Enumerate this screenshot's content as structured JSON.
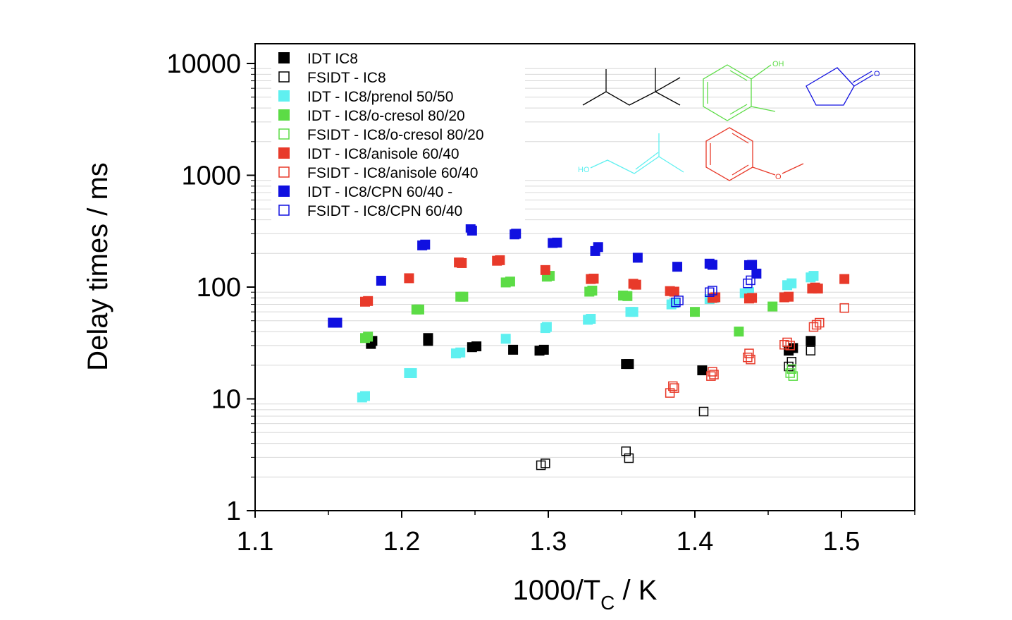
{
  "chart_data": {
    "type": "scatter",
    "xlabel_main": "1000/T",
    "xlabel_sub": "C",
    "xlabel_unit": " / K",
    "ylabel": "Delay times / ms",
    "xlim": [
      1.1,
      1.55
    ],
    "ylim": [
      1,
      20000
    ],
    "yscale": "log",
    "x_ticks": [
      "1.1",
      "1.2",
      "1.3",
      "1.4",
      "1.5"
    ],
    "y_ticks": [
      "1",
      "10",
      "100",
      "1000",
      "10000"
    ],
    "grid": "horizontal minor lines",
    "legend_position": "top-left",
    "series": [
      {
        "name": "IDT IC8",
        "color": "#000000",
        "filled": true,
        "points": [
          [
            1.179,
            31
          ],
          [
            1.18,
            33
          ],
          [
            1.218,
            33
          ],
          [
            1.218,
            35
          ],
          [
            1.248,
            29
          ],
          [
            1.251,
            29.5
          ],
          [
            1.276,
            27.5
          ],
          [
            1.294,
            27
          ],
          [
            1.297,
            27.5
          ],
          [
            1.353,
            20.5
          ],
          [
            1.355,
            20.5
          ],
          [
            1.405,
            18
          ],
          [
            1.464,
            27
          ],
          [
            1.467,
            28.5
          ],
          [
            1.479,
            33
          ]
        ]
      },
      {
        "name": "FSIDT - IC8",
        "color": "#000000",
        "filled": false,
        "points": [
          [
            1.295,
            2.55
          ],
          [
            1.298,
            2.65
          ],
          [
            1.353,
            3.4
          ],
          [
            1.355,
            2.95
          ],
          [
            1.406,
            7.7
          ],
          [
            1.464,
            19.5
          ],
          [
            1.466,
            21.5
          ],
          [
            1.479,
            27
          ]
        ]
      },
      {
        "name": "IDT - IC8/prenol 50/50",
        "color": "#5ff0f0",
        "filled": true,
        "points": [
          [
            1.173,
            10.3
          ],
          [
            1.175,
            10.6
          ],
          [
            1.205,
            17
          ],
          [
            1.207,
            17
          ],
          [
            1.237,
            25.5
          ],
          [
            1.24,
            26
          ],
          [
            1.271,
            34.5
          ],
          [
            1.298,
            43
          ],
          [
            1.299,
            44
          ],
          [
            1.327,
            51
          ],
          [
            1.329,
            52
          ],
          [
            1.356,
            60
          ],
          [
            1.358,
            60
          ],
          [
            1.384,
            70
          ],
          [
            1.386,
            72
          ],
          [
            1.41,
            78
          ],
          [
            1.413,
            80
          ],
          [
            1.434,
            88
          ],
          [
            1.437,
            90
          ],
          [
            1.463,
            104
          ],
          [
            1.466,
            108
          ],
          [
            1.479,
            122
          ],
          [
            1.481,
            126
          ]
        ]
      },
      {
        "name": "IDT - IC8/o-cresol 80/20",
        "color": "#5cdc46",
        "filled": true,
        "points": [
          [
            1.175,
            35
          ],
          [
            1.177,
            36
          ],
          [
            1.21,
            63
          ],
          [
            1.212,
            63
          ],
          [
            1.24,
            82
          ],
          [
            1.242,
            82
          ],
          [
            1.271,
            110
          ],
          [
            1.274,
            112
          ],
          [
            1.299,
            124
          ],
          [
            1.301,
            126
          ],
          [
            1.328,
            91
          ],
          [
            1.33,
            93
          ],
          [
            1.351,
            84
          ],
          [
            1.354,
            83
          ],
          [
            1.4,
            60
          ],
          [
            1.43,
            40
          ],
          [
            1.453,
            67
          ]
        ]
      },
      {
        "name": "FSIDT - IC8/o-cresol 80/20",
        "color": "#5cdc46",
        "filled": false,
        "points": [
          [
            1.465,
            17
          ],
          [
            1.466,
            18.5
          ],
          [
            1.467,
            16
          ]
        ]
      },
      {
        "name": "IDT - IC8/anisole 60/40",
        "color": "#e83a2a",
        "filled": true,
        "points": [
          [
            1.175,
            74
          ],
          [
            1.177,
            75
          ],
          [
            1.205,
            120
          ],
          [
            1.239,
            166
          ],
          [
            1.241,
            164
          ],
          [
            1.265,
            172
          ],
          [
            1.267,
            174
          ],
          [
            1.298,
            142
          ],
          [
            1.329,
            118
          ],
          [
            1.331,
            119
          ],
          [
            1.358,
            107
          ],
          [
            1.36,
            105
          ],
          [
            1.383,
            92
          ],
          [
            1.386,
            91
          ],
          [
            1.412,
            80
          ],
          [
            1.414,
            81
          ],
          [
            1.437,
            79
          ],
          [
            1.439,
            80
          ],
          [
            1.461,
            81
          ],
          [
            1.464,
            82
          ],
          [
            1.48,
            97
          ],
          [
            1.482,
            99
          ],
          [
            1.484,
            97
          ],
          [
            1.502,
            118
          ]
        ]
      },
      {
        "name": "FSIDT - IC8/anisole 60/40",
        "color": "#e83a2a",
        "filled": false,
        "points": [
          [
            1.383,
            11.3
          ],
          [
            1.385,
            13
          ],
          [
            1.386,
            12.5
          ],
          [
            1.411,
            16
          ],
          [
            1.412,
            17.5
          ],
          [
            1.413,
            16.5
          ],
          [
            1.436,
            23.5
          ],
          [
            1.437,
            25.5
          ],
          [
            1.438,
            22.5
          ],
          [
            1.461,
            30.5
          ],
          [
            1.463,
            32
          ],
          [
            1.465,
            30
          ],
          [
            1.481,
            44
          ],
          [
            1.483,
            46
          ],
          [
            1.485,
            48
          ],
          [
            1.502,
            65
          ]
        ]
      },
      {
        "name": "IDT - IC8/CPN 60/40 -",
        "color": "#1010e0",
        "filled": true,
        "points": [
          [
            1.153,
            48
          ],
          [
            1.156,
            48
          ],
          [
            1.186,
            114
          ],
          [
            1.214,
            236
          ],
          [
            1.216,
            240
          ],
          [
            1.247,
            340
          ],
          [
            1.248,
            320
          ],
          [
            1.277,
            296
          ],
          [
            1.278,
            300
          ],
          [
            1.303,
            248
          ],
          [
            1.306,
            250
          ],
          [
            1.332,
            210
          ],
          [
            1.334,
            228
          ],
          [
            1.361,
            183
          ],
          [
            1.388,
            152
          ],
          [
            1.41,
            162
          ],
          [
            1.412,
            158
          ],
          [
            1.437,
            157
          ],
          [
            1.439,
            158
          ],
          [
            1.442,
            132
          ]
        ]
      },
      {
        "name": "FSIDT - IC8/CPN 60/40",
        "color": "#1010e0",
        "filled": false,
        "points": [
          [
            1.387,
            73
          ],
          [
            1.389,
            76
          ],
          [
            1.41,
            90
          ],
          [
            1.412,
            93
          ],
          [
            1.436,
            108
          ],
          [
            1.438,
            115
          ]
        ]
      }
    ],
    "molecules": [
      {
        "name": "isooctane",
        "color": "#000000"
      },
      {
        "name": "o-cresol",
        "color": "#5cdc46",
        "label": "OH"
      },
      {
        "name": "cyclopentanone",
        "color": "#1010e0",
        "label": "O"
      },
      {
        "name": "prenol",
        "color": "#5ff0f0",
        "label": "HO"
      },
      {
        "name": "anisole",
        "color": "#e83a2a",
        "label": "O"
      }
    ]
  }
}
